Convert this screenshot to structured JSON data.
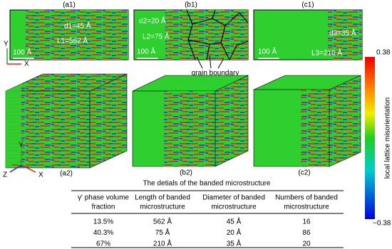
{
  "panels": [
    {
      "label": "(a1)",
      "annotations": [
        "d1=45 Å",
        "L1=562 Å"
      ],
      "scale": "100 Å"
    },
    {
      "label": "(b1)",
      "annotations": [
        "d2=20 Å",
        "L2=75 Å"
      ],
      "scale": "100 Å"
    },
    {
      "label": "(c1)",
      "annotations": [
        "d3=35 Å",
        "L3=210 Å"
      ],
      "scale": "100 Å"
    }
  ],
  "axes_top": {
    "y": "Y",
    "x": "X"
  },
  "axes_3d": {
    "y": "Y",
    "z": "Z",
    "x": "X"
  },
  "grain_boundary": "grain boundary",
  "boxes": [
    "(a2)",
    "(b2)",
    "(c2)"
  ],
  "colorbar": {
    "max": "0.38",
    "min": "−0.38",
    "label": "local lattice misorientation"
  },
  "table": {
    "title": "The detials of the banded microstructure",
    "headers": [
      [
        "γ' phase volume",
        "fraction"
      ],
      [
        "Length of banded",
        "microstructure"
      ],
      [
        "Diameter of banded",
        "microstructure"
      ],
      [
        "Numbers of banded",
        "microstructure"
      ]
    ],
    "rows": [
      [
        "13.5%",
        "562 Å",
        "45 Å",
        "16"
      ],
      [
        "40.3%",
        "75 Å",
        "20 Å",
        "86"
      ],
      [
        "67%",
        "210 Å",
        "35 Å",
        "20"
      ]
    ]
  }
}
